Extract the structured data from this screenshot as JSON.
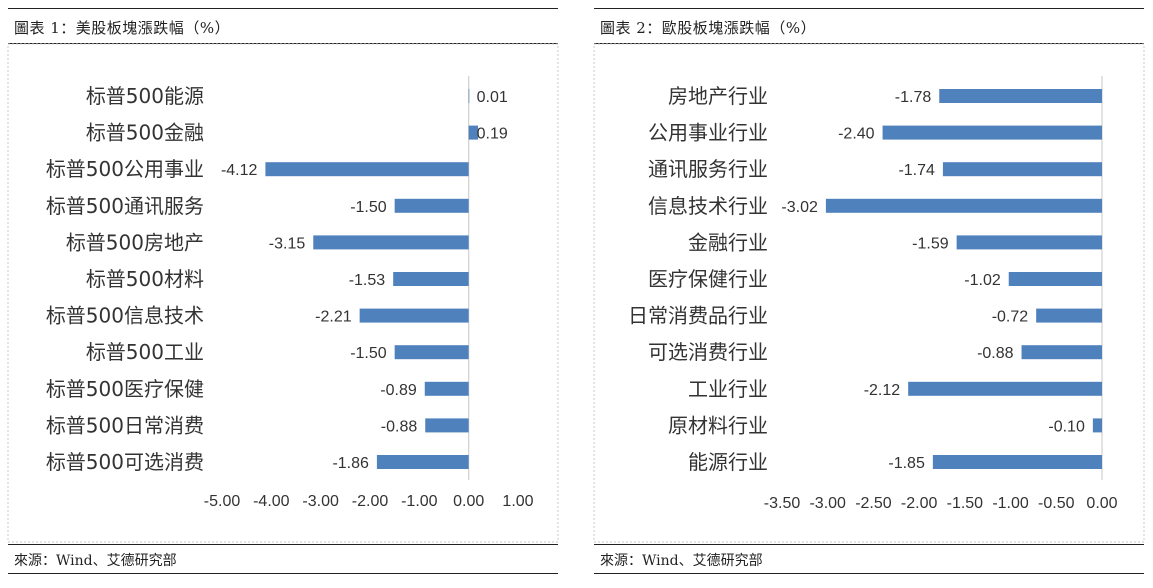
{
  "charts": [
    {
      "title": "圖表 1：美股板塊漲跌幅（%）",
      "source": "來源：Wind、艾德研究部",
      "chart_data": {
        "type": "bar",
        "orientation": "horizontal",
        "categories": [
          "标普500能源",
          "标普500金融",
          "标普500公用事业",
          "标普500通讯服务",
          "标普500房地产",
          "标普500材料",
          "标普500信息技术",
          "标普500工业",
          "标普500医疗保健",
          "标普500日常消费",
          "标普500可选消费"
        ],
        "values": [
          0.01,
          0.19,
          -4.12,
          -1.5,
          -3.15,
          -1.53,
          -2.21,
          -1.5,
          -0.89,
          -0.88,
          -1.86
        ],
        "value_labels": [
          "0.01",
          "0.19",
          "-4.12",
          "-1.50",
          "-3.15",
          "-1.53",
          "-2.21",
          "-1.50",
          "-0.89",
          "-0.88",
          "-1.86"
        ],
        "xlim": [
          -5.0,
          1.0
        ],
        "ticks": [
          -5,
          -4,
          -3,
          -2,
          -1,
          0,
          1
        ],
        "tick_labels": [
          "-5.00",
          "-4.00",
          "-3.00",
          "-2.00",
          "-1.00",
          "0.00",
          "1.00"
        ],
        "bar_color": "#4f81bd",
        "grid": false,
        "legend": "none"
      }
    },
    {
      "title": "圖表 2：歐股板塊漲跌幅（%）",
      "source": "來源：Wind、艾德研究部",
      "chart_data": {
        "type": "bar",
        "orientation": "horizontal",
        "categories": [
          "房地产行业",
          "公用事业行业",
          "通讯服务行业",
          "信息技术行业",
          "金融行业",
          "医疗保健行业",
          "日常消费品行业",
          "可选消费行业",
          "工业行业",
          "原材料行业",
          "能源行业"
        ],
        "values": [
          -1.78,
          -2.4,
          -1.74,
          -3.02,
          -1.59,
          -1.02,
          -0.72,
          -0.88,
          -2.12,
          -0.1,
          -1.85
        ],
        "value_labels": [
          "-1.78",
          "-2.40",
          "-1.74",
          "-3.02",
          "-1.59",
          "-1.02",
          "-0.72",
          "-0.88",
          "-2.12",
          "-0.10",
          "-1.85"
        ],
        "xlim": [
          -3.5,
          0.0
        ],
        "ticks": [
          -3.5,
          -3.0,
          -2.5,
          -2.0,
          -1.5,
          -1.0,
          -0.5,
          0.0
        ],
        "tick_labels": [
          "-3.50",
          "-3.00",
          "-2.50",
          "-2.00",
          "-1.50",
          "-1.00",
          "-0.50",
          "0.00"
        ],
        "bar_color": "#4f81bd",
        "grid": false,
        "legend": "none"
      }
    }
  ]
}
